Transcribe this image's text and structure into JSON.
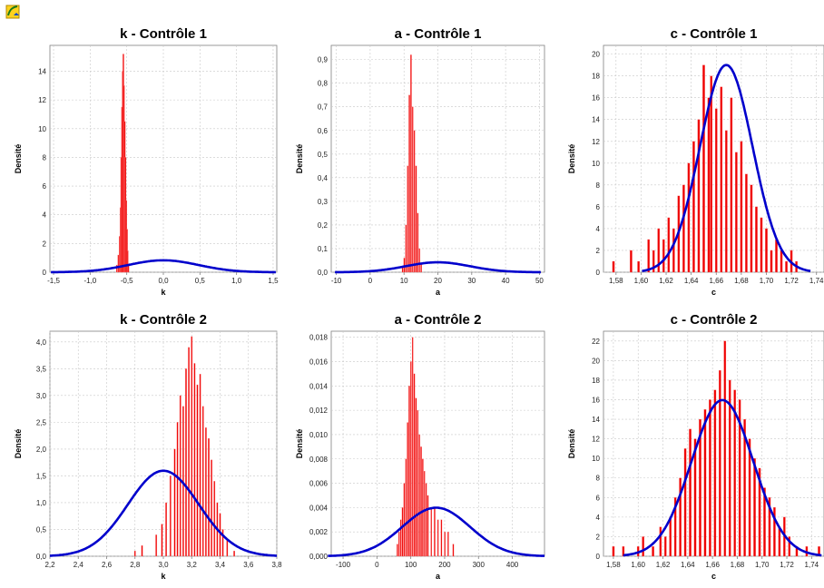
{
  "app": {
    "icon": "chart-app-icon"
  },
  "colors": {
    "bars": "#ee0000",
    "curve": "#0000cc",
    "grid": "#c8c8c8"
  },
  "chart_data": [
    {
      "type": "bar",
      "title": "k - Contrôle 1",
      "xlabel": "k",
      "ylabel": "Densité",
      "xlim": [
        -1.55,
        1.55
      ],
      "ylim": [
        0,
        15.8
      ],
      "xticks": [
        -1.5,
        -1.0,
        -0.5,
        0.0,
        0.5,
        1.0,
        1.5
      ],
      "xtick_labels": [
        "-1,5",
        "-1,0",
        "-0,5",
        "0,0",
        "0,5",
        "1,0",
        "1,5"
      ],
      "yticks": [
        0,
        2,
        4,
        6,
        8,
        10,
        12,
        14
      ],
      "ytick_labels": [
        "0",
        "2",
        "4",
        "6",
        "8",
        "10",
        "12",
        "14"
      ],
      "bar_width": 0.007,
      "bar_x": [
        -0.64,
        -0.62,
        -0.6,
        -0.59,
        -0.58,
        -0.57,
        -0.56,
        -0.55,
        -0.54,
        -0.53,
        -0.52,
        -0.51,
        -0.5,
        -0.49,
        -0.48
      ],
      "bar_values": [
        0.5,
        1.2,
        2.5,
        4.5,
        8.0,
        11.5,
        14.0,
        15.2,
        13.0,
        10.5,
        8.0,
        5.0,
        3.0,
        1.5,
        0.5
      ],
      "curve": {
        "mean": 0.0,
        "sd": 0.48
      }
    },
    {
      "type": "bar",
      "title": "a - Contrôle 1",
      "xlabel": "a",
      "ylabel": "Densité",
      "xlim": [
        -11.5,
        51.5
      ],
      "ylim": [
        0,
        0.96
      ],
      "xticks": [
        -10,
        0,
        10,
        20,
        30,
        40,
        50
      ],
      "xtick_labels": [
        "-10",
        "0",
        "10",
        "20",
        "30",
        "40",
        "50"
      ],
      "yticks": [
        0,
        0.1,
        0.2,
        0.3,
        0.4,
        0.5,
        0.6,
        0.7,
        0.8,
        0.9
      ],
      "ytick_labels": [
        "0,0",
        "0,1",
        "0,2",
        "0,3",
        "0,4",
        "0,5",
        "0,6",
        "0,7",
        "0,8",
        "0,9"
      ],
      "bar_width": 0.18,
      "bar_x": [
        9.5,
        10,
        10.5,
        11,
        11.5,
        12,
        12.5,
        13,
        13.5,
        14,
        14.5,
        15
      ],
      "bar_values": [
        0.02,
        0.06,
        0.2,
        0.45,
        0.75,
        0.92,
        0.7,
        0.6,
        0.45,
        0.25,
        0.1,
        0.04
      ],
      "curve": {
        "mean": 20.0,
        "sd": 9.5
      }
    },
    {
      "type": "bar",
      "title": "c - Contrôle 1",
      "xlabel": "c",
      "ylabel": "Densité",
      "xlim": [
        1.57,
        1.746
      ],
      "ylim": [
        0,
        20.8
      ],
      "xticks": [
        1.58,
        1.6,
        1.62,
        1.64,
        1.66,
        1.68,
        1.7,
        1.72,
        1.74
      ],
      "xtick_labels": [
        "1,58",
        "1,60",
        "1,62",
        "1,64",
        "1,66",
        "1,68",
        "1,70",
        "1,72",
        "1,74"
      ],
      "yticks": [
        0,
        2,
        4,
        6,
        8,
        10,
        12,
        14,
        16,
        18,
        20
      ],
      "ytick_labels": [
        "0",
        "2",
        "4",
        "6",
        "8",
        "10",
        "12",
        "14",
        "16",
        "18",
        "20"
      ],
      "bar_width": 0.0017,
      "bar_x": [
        1.578,
        1.592,
        1.598,
        1.606,
        1.61,
        1.614,
        1.618,
        1.622,
        1.626,
        1.63,
        1.634,
        1.638,
        1.642,
        1.646,
        1.65,
        1.654,
        1.656,
        1.66,
        1.664,
        1.668,
        1.672,
        1.676,
        1.68,
        1.684,
        1.688,
        1.692,
        1.696,
        1.7,
        1.704,
        1.708,
        1.712,
        1.716,
        1.72,
        1.724
      ],
      "bar_values": [
        1,
        2,
        1,
        3,
        2,
        4,
        3,
        5,
        4,
        7,
        8,
        10,
        12,
        14,
        19,
        16,
        18,
        15,
        17,
        13,
        16,
        11,
        12,
        9,
        8,
        6,
        5,
        4,
        2,
        3,
        2,
        1,
        2,
        1
      ],
      "curve": {
        "mean": 1.668,
        "sd": 0.021
      }
    },
    {
      "type": "bar",
      "title": "k - Contrôle 2",
      "xlabel": "k",
      "ylabel": "Densité",
      "xlim": [
        2.2,
        3.8
      ],
      "ylim": [
        0,
        4.2
      ],
      "xticks": [
        2.2,
        2.4,
        2.6,
        2.8,
        3.0,
        3.2,
        3.4,
        3.6,
        3.8
      ],
      "xtick_labels": [
        "2,2",
        "2,4",
        "2,6",
        "2,8",
        "3,0",
        "3,2",
        "3,4",
        "3,6",
        "3,8"
      ],
      "yticks": [
        0,
        0.5,
        1.0,
        1.5,
        2.0,
        2.5,
        3.0,
        3.5,
        4.0
      ],
      "ytick_labels": [
        "0,0",
        "0,5",
        "1,0",
        "1,5",
        "2,0",
        "2,5",
        "3,0",
        "3,5",
        "4,0"
      ],
      "bar_width": 0.009,
      "bar_x": [
        2.8,
        2.85,
        2.95,
        2.99,
        3.02,
        3.05,
        3.08,
        3.1,
        3.12,
        3.14,
        3.16,
        3.18,
        3.2,
        3.22,
        3.24,
        3.26,
        3.28,
        3.3,
        3.32,
        3.34,
        3.36,
        3.38,
        3.4,
        3.42,
        3.45,
        3.5
      ],
      "bar_values": [
        0.1,
        0.2,
        0.4,
        0.6,
        1.0,
        1.5,
        2.0,
        2.5,
        3.0,
        2.8,
        3.5,
        3.9,
        4.1,
        3.6,
        3.2,
        3.4,
        2.8,
        2.4,
        2.2,
        1.8,
        1.4,
        1.0,
        0.8,
        0.5,
        0.3,
        0.1
      ],
      "curve": {
        "mean": 3.0,
        "sd": 0.25
      }
    },
    {
      "type": "bar",
      "title": "a - Contrôle 2",
      "xlabel": "a",
      "ylabel": "Densité",
      "xlim": [
        -135,
        495
      ],
      "ylim": [
        0,
        0.0185
      ],
      "xticks": [
        -100,
        0,
        100,
        200,
        300,
        400
      ],
      "xtick_labels": [
        "-100",
        "0",
        "100",
        "200",
        "300",
        "400"
      ],
      "yticks": [
        0,
        0.002,
        0.004,
        0.006,
        0.008,
        0.01,
        0.012,
        0.014,
        0.016,
        0.018
      ],
      "ytick_labels": [
        "0,000",
        "0,002",
        "0,004",
        "0,006",
        "0,008",
        "0,010",
        "0,012",
        "0,014",
        "0,016",
        "0,018"
      ],
      "bar_width": 2.2,
      "bar_x": [
        60,
        65,
        70,
        75,
        80,
        85,
        90,
        95,
        100,
        105,
        110,
        115,
        120,
        125,
        130,
        135,
        140,
        145,
        150,
        160,
        170,
        180,
        190,
        200,
        210,
        225
      ],
      "bar_values": [
        0.001,
        0.002,
        0.003,
        0.004,
        0.006,
        0.008,
        0.011,
        0.014,
        0.016,
        0.018,
        0.015,
        0.013,
        0.012,
        0.01,
        0.009,
        0.008,
        0.007,
        0.006,
        0.005,
        0.004,
        0.004,
        0.003,
        0.003,
        0.002,
        0.002,
        0.001
      ],
      "curve": {
        "mean": 175,
        "sd": 100
      }
    },
    {
      "type": "bar",
      "title": "c - Contrôle 2",
      "xlabel": "c",
      "ylabel": "Densité",
      "xlim": [
        1.572,
        1.75
      ],
      "ylim": [
        0,
        23
      ],
      "xticks": [
        1.58,
        1.6,
        1.62,
        1.64,
        1.66,
        1.68,
        1.7,
        1.72,
        1.74
      ],
      "xtick_labels": [
        "1,58",
        "1,60",
        "1,62",
        "1,64",
        "1,66",
        "1,68",
        "1,70",
        "1,72",
        "1,74"
      ],
      "yticks": [
        0,
        2,
        4,
        6,
        8,
        10,
        12,
        14,
        16,
        18,
        20,
        22
      ],
      "ytick_labels": [
        "0",
        "2",
        "4",
        "6",
        "8",
        "10",
        "12",
        "14",
        "16",
        "18",
        "20",
        "22"
      ],
      "bar_width": 0.0017,
      "bar_x": [
        1.58,
        1.588,
        1.6,
        1.604,
        1.612,
        1.618,
        1.622,
        1.626,
        1.63,
        1.634,
        1.638,
        1.642,
        1.646,
        1.65,
        1.654,
        1.658,
        1.662,
        1.666,
        1.67,
        1.674,
        1.678,
        1.682,
        1.686,
        1.69,
        1.694,
        1.698,
        1.702,
        1.706,
        1.71,
        1.714,
        1.718,
        1.722,
        1.728,
        1.736,
        1.746
      ],
      "bar_values": [
        1,
        1,
        1,
        2,
        1,
        3,
        2,
        4,
        6,
        8,
        11,
        13,
        12,
        14,
        15,
        16,
        17,
        19,
        22,
        18,
        17,
        16,
        14,
        12,
        10,
        9,
        7,
        6,
        5,
        3,
        4,
        2,
        1,
        1,
        1
      ],
      "curve": {
        "mean": 1.668,
        "sd": 0.025
      }
    }
  ]
}
